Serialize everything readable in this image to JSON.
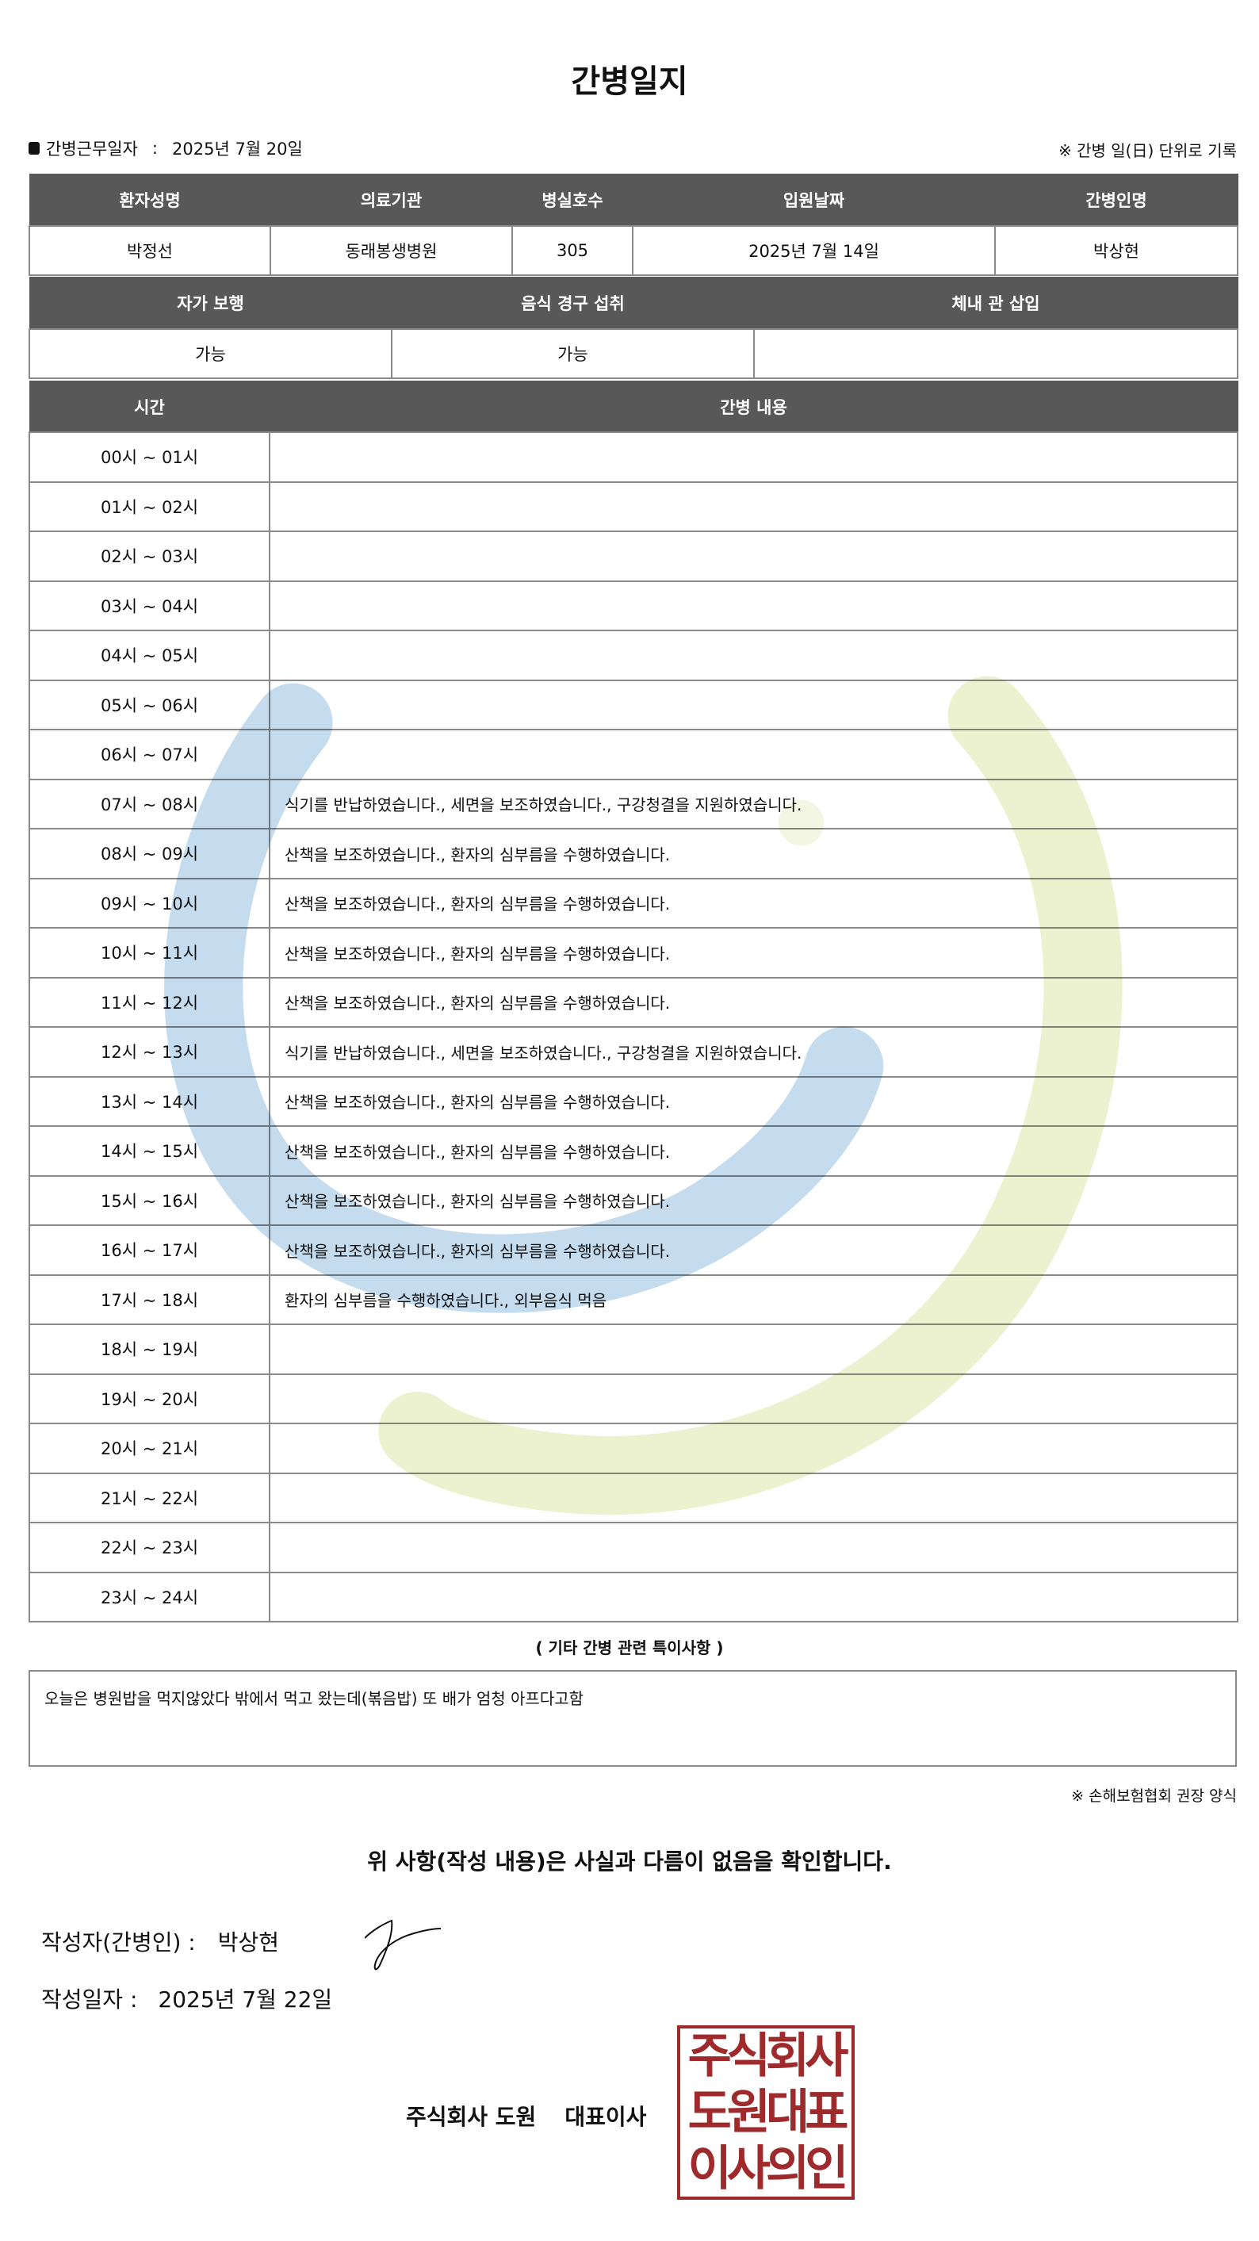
{
  "title": "간병일지",
  "meta": {
    "work_date_label": "간병근무일자",
    "work_date_sep": ":",
    "work_date": "2025년 7월 20일",
    "note": "※ 간병 일(日) 단위로 기록"
  },
  "patient_table": {
    "headers": [
      "환자성명",
      "의료기관",
      "병실호수",
      "입원날짜",
      "간병인명"
    ],
    "values": [
      "박정선",
      "동래봉생병원",
      "305",
      "2025년 7월 14일",
      "박상현"
    ]
  },
  "status_table": {
    "headers": [
      "자가 보행",
      "음식 경구 섭취",
      "체내 관 삽입"
    ],
    "values": [
      "가능",
      "가능",
      ""
    ]
  },
  "log_table": {
    "headers": [
      "시간",
      "간병 내용"
    ],
    "rows": [
      {
        "time": "00시 ~ 01시",
        "content": ""
      },
      {
        "time": "01시 ~ 02시",
        "content": ""
      },
      {
        "time": "02시 ~ 03시",
        "content": ""
      },
      {
        "time": "03시 ~ 04시",
        "content": ""
      },
      {
        "time": "04시 ~ 05시",
        "content": ""
      },
      {
        "time": "05시 ~ 06시",
        "content": ""
      },
      {
        "time": "06시 ~ 07시",
        "content": ""
      },
      {
        "time": "07시 ~ 08시",
        "content": "식기를 반납하였습니다., 세면을 보조하였습니다., 구강청결을 지원하였습니다."
      },
      {
        "time": "08시 ~ 09시",
        "content": "산책을 보조하였습니다., 환자의 심부름을 수행하였습니다."
      },
      {
        "time": "09시 ~ 10시",
        "content": "산책을 보조하였습니다., 환자의 심부름을 수행하였습니다."
      },
      {
        "time": "10시 ~ 11시",
        "content": "산책을 보조하였습니다., 환자의 심부름을 수행하였습니다."
      },
      {
        "time": "11시 ~ 12시",
        "content": "산책을 보조하였습니다., 환자의 심부름을 수행하였습니다."
      },
      {
        "time": "12시 ~ 13시",
        "content": "식기를 반납하였습니다., 세면을 보조하였습니다., 구강청결을 지원하였습니다."
      },
      {
        "time": "13시 ~ 14시",
        "content": "산책을 보조하였습니다., 환자의 심부름을 수행하였습니다."
      },
      {
        "time": "14시 ~ 15시",
        "content": "산책을 보조하였습니다., 환자의 심부름을 수행하였습니다."
      },
      {
        "time": "15시 ~ 16시",
        "content": "산책을 보조하였습니다., 환자의 심부름을 수행하였습니다."
      },
      {
        "time": "16시 ~ 17시",
        "content": "산책을 보조하였습니다., 환자의 심부름을 수행하였습니다."
      },
      {
        "time": "17시 ~ 18시",
        "content": "환자의 심부름을 수행하였습니다., 외부음식 먹음"
      },
      {
        "time": "18시 ~ 19시",
        "content": ""
      },
      {
        "time": "19시 ~ 20시",
        "content": ""
      },
      {
        "time": "20시 ~ 21시",
        "content": ""
      },
      {
        "time": "21시 ~ 22시",
        "content": ""
      },
      {
        "time": "22시 ~ 23시",
        "content": ""
      },
      {
        "time": "23시 ~ 24시",
        "content": ""
      }
    ]
  },
  "notes": {
    "label": "( 기타 간병 관련 특이사항 )",
    "text": "오늘은 병원밥을 먹지않았다 밖에서 먹고 왔는데(볶음밥)  또 배가 엄청 아프다고함"
  },
  "form_note": "※ 손해보험협회 권장 양식",
  "confirm": "위 사항(작성 내용)은 사실과 다름이 없음을 확인합니다.",
  "writer": {
    "label": "작성자(간병인) :",
    "name": "박상현"
  },
  "written_date": {
    "label": "작성일자 :",
    "value": "2025년 7월 22일"
  },
  "company": {
    "name": "주식회사 도원",
    "title": "대표이사"
  },
  "stamp": {
    "lines": [
      "주식회사",
      "도원대표",
      "이사의인"
    ]
  },
  "colors": {
    "header_bg": "#585858",
    "stamp": "#9e2a2b",
    "watermark_blue": "#c5dcef",
    "watermark_green": "#ecf2d0"
  }
}
